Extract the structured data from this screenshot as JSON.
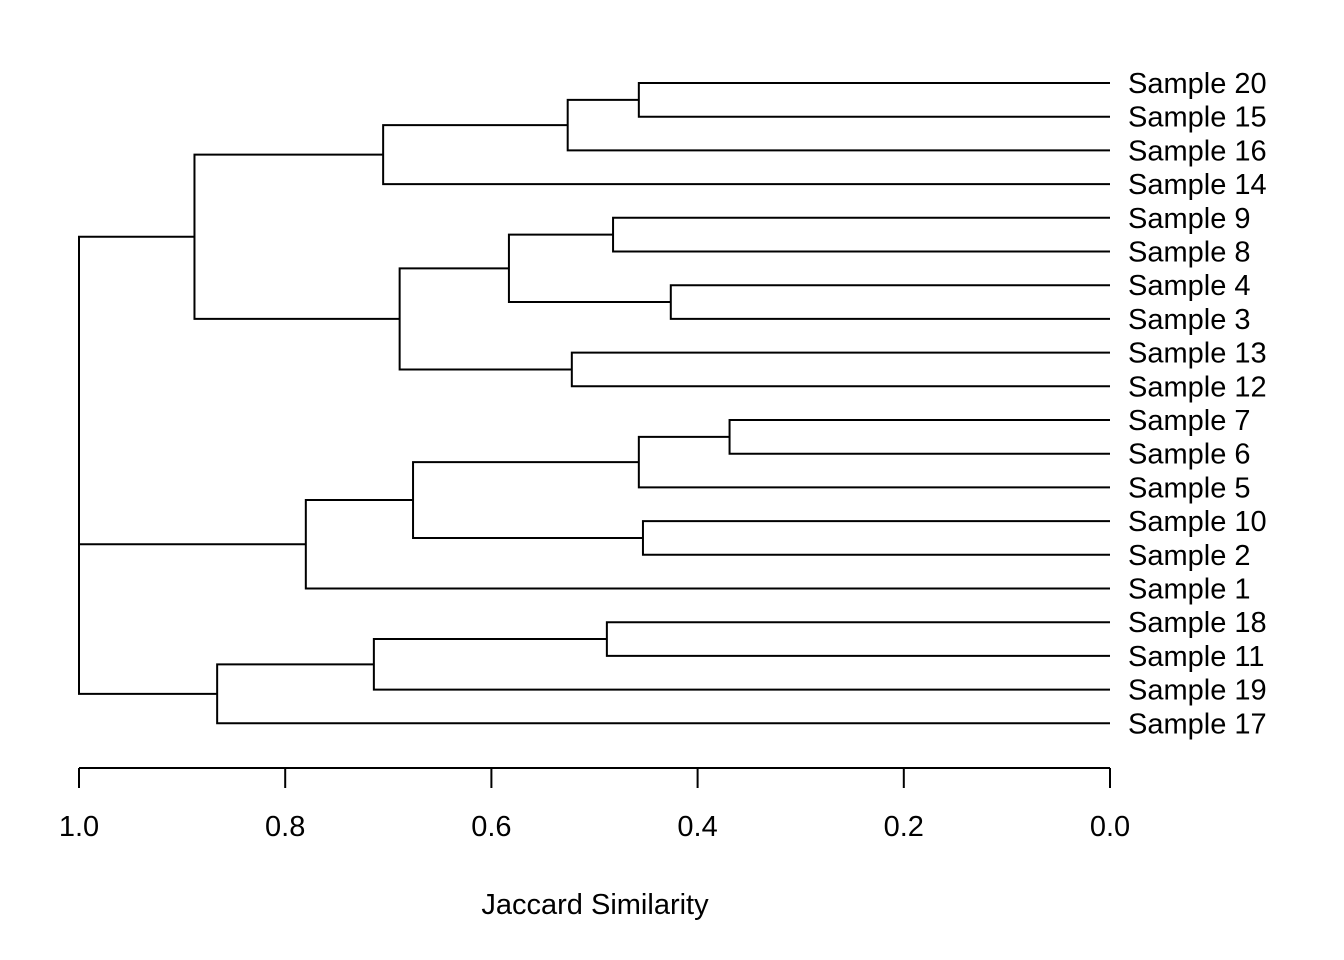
{
  "chart_data": {
    "type": "dendrogram",
    "title": "",
    "xlabel": "Jaccard Similarity",
    "xlim": [
      1.0,
      0.0
    ],
    "ticks": [
      "1.0",
      "0.8",
      "0.6",
      "0.4",
      "0.2",
      "0.0"
    ],
    "tick_values": [
      1.0,
      0.8,
      0.6,
      0.4,
      0.2,
      0.0
    ],
    "leaves": [
      "Sample 20",
      "Sample 15",
      "Sample 16",
      "Sample 14",
      "Sample 9",
      "Sample 8",
      "Sample 4",
      "Sample 3",
      "Sample 13",
      "Sample 12",
      "Sample 7",
      "Sample 6",
      "Sample 5",
      "Sample 10",
      "Sample 2",
      "Sample 1",
      "Sample 18",
      "Sample 11",
      "Sample 19",
      "Sample 17"
    ],
    "merges": [
      {
        "a": "Sample 20",
        "b": "Sample 15",
        "height": 0.457,
        "id": "m1"
      },
      {
        "a": "m1",
        "b": "Sample 16",
        "height": 0.526,
        "id": "m2"
      },
      {
        "a": "m2",
        "b": "Sample 14",
        "height": 0.705,
        "id": "m3"
      },
      {
        "a": "Sample 9",
        "b": "Sample 8",
        "height": 0.482,
        "id": "m4"
      },
      {
        "a": "Sample 4",
        "b": "Sample 3",
        "height": 0.426,
        "id": "m5"
      },
      {
        "a": "m4",
        "b": "m5",
        "height": 0.583,
        "id": "m6"
      },
      {
        "a": "Sample 13",
        "b": "Sample 12",
        "height": 0.522,
        "id": "m7"
      },
      {
        "a": "m6",
        "b": "m7",
        "height": 0.689,
        "id": "m8"
      },
      {
        "a": "m3",
        "b": "m8",
        "height": 0.888,
        "id": "m9"
      },
      {
        "a": "Sample 7",
        "b": "Sample 6",
        "height": 0.369,
        "id": "m10"
      },
      {
        "a": "m10",
        "b": "Sample 5",
        "height": 0.457,
        "id": "m11"
      },
      {
        "a": "Sample 10",
        "b": "Sample 2",
        "height": 0.453,
        "id": "m12"
      },
      {
        "a": "m11",
        "b": "m12",
        "height": 0.676,
        "id": "m13"
      },
      {
        "a": "m13",
        "b": "Sample 1",
        "height": 0.78,
        "id": "m14"
      },
      {
        "a": "Sample 18",
        "b": "Sample 11",
        "height": 0.488,
        "id": "m15"
      },
      {
        "a": "m15",
        "b": "Sample 19",
        "height": 0.714,
        "id": "m16"
      },
      {
        "a": "m16",
        "b": "Sample 17",
        "height": 0.866,
        "id": "m17"
      },
      {
        "a": "m14",
        "b": "m17",
        "height": 1.0,
        "id": "m18"
      },
      {
        "a": "m9",
        "b": "m18",
        "height": 1.0,
        "id": "m19"
      }
    ]
  }
}
